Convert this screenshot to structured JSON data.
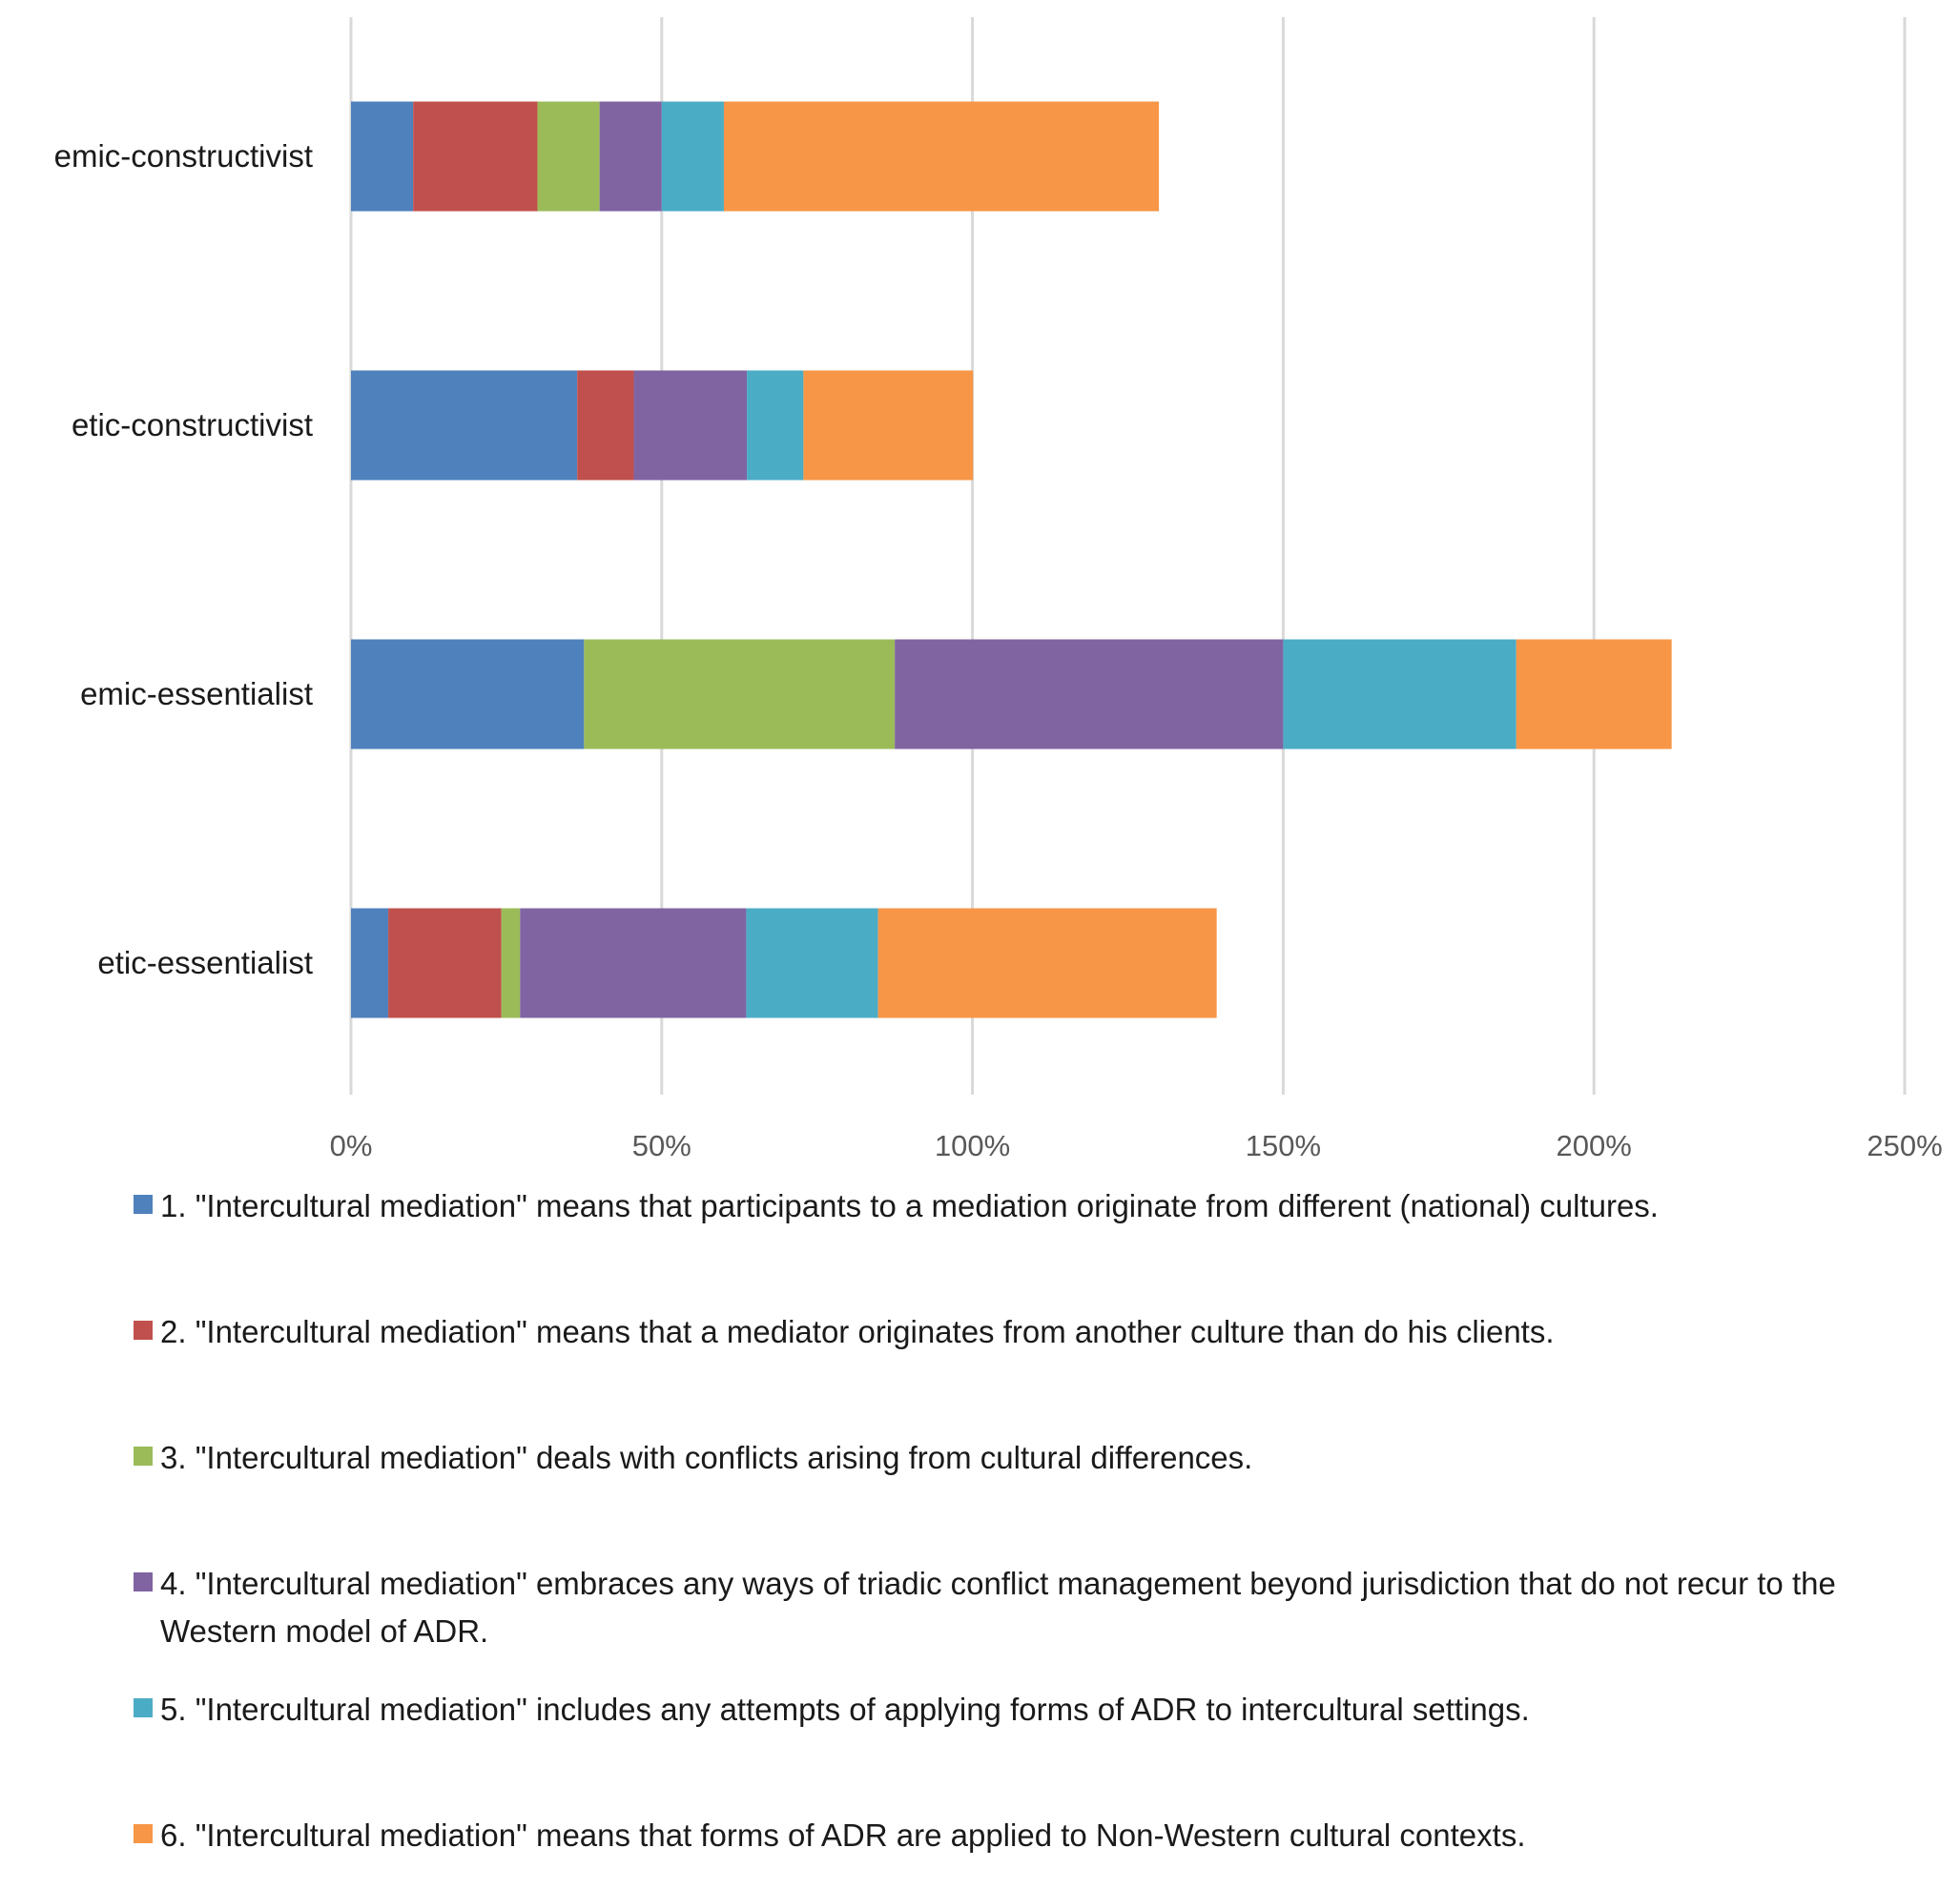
{
  "chart_data": {
    "type": "bar",
    "orientation": "horizontal",
    "stacked": true,
    "categories": [
      "emic-constructivist",
      "etic-constructivist",
      "emic-essentialist",
      "etic-essentialist"
    ],
    "series": [
      {
        "name": "1. \"Intercultural mediation\" means that participants to a mediation originate from different (national) cultures.",
        "color": "#4F81BD",
        "values": [
          10,
          36.4,
          37.5,
          6
        ]
      },
      {
        "name": "2. \"Intercultural mediation\" means that a mediator originates from another culture than do his clients.",
        "color": "#C0504D",
        "values": [
          20,
          9.1,
          0,
          18.2
        ]
      },
      {
        "name": "3. \"Intercultural mediation\" deals with conflicts arising from cultural differences.",
        "color": "#9BBB59",
        "values": [
          10,
          0,
          50,
          3
        ]
      },
      {
        "name": "4. \"Intercultural mediation\" embraces any ways of triadic conflict management beyond jurisdiction that do not recur to the Western model of ADR.",
        "color": "#8064A2",
        "values": [
          10,
          18.2,
          62.5,
          36.4
        ]
      },
      {
        "name": "5. \"Intercultural mediation\" includes any attempts of applying forms of ADR to intercultural settings.",
        "color": "#4BACC6",
        "values": [
          10,
          9.1,
          37.5,
          21.2
        ]
      },
      {
        "name": "6. \"Intercultural mediation\" means that forms of ADR are applied to Non-Western cultural contexts.",
        "color": "#F79646",
        "values": [
          70,
          27.3,
          25,
          54.5
        ]
      }
    ],
    "x_ticks": [
      "0%",
      "50%",
      "100%",
      "150%",
      "200%",
      "250%"
    ],
    "xlim": [
      0,
      250
    ],
    "grid": true,
    "legend_position": "bottom",
    "title": "",
    "xlabel": "",
    "ylabel": ""
  }
}
